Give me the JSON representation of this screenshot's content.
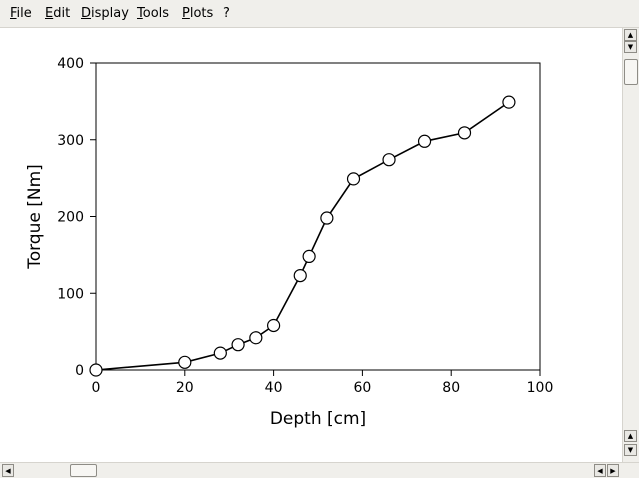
{
  "menu": [
    "File",
    "Edit",
    "Display",
    "Tools",
    "Plots",
    "?"
  ],
  "chart_data": {
    "type": "line",
    "xlabel": "Depth [cm]",
    "ylabel": "Torque [Nm]",
    "xlim": [
      0,
      100
    ],
    "ylim": [
      0,
      400
    ],
    "xticks": [
      0,
      20,
      40,
      60,
      80,
      100
    ],
    "yticks": [
      0,
      100,
      200,
      300,
      400
    ],
    "grid": false,
    "marker": "open-circle",
    "series": [
      {
        "x": [
          0,
          20,
          28,
          32,
          36,
          40,
          46,
          48,
          52,
          58,
          66,
          74,
          83,
          93
        ],
        "y": [
          0,
          10,
          22,
          33,
          42,
          58,
          123,
          148,
          198,
          249,
          274,
          298,
          309,
          349
        ]
      }
    ]
  },
  "scrollbar_icons": {
    "up": "arrow-up-icon",
    "down": "arrow-down-icon",
    "left": "arrow-left-icon",
    "right": "arrow-right-icon"
  }
}
